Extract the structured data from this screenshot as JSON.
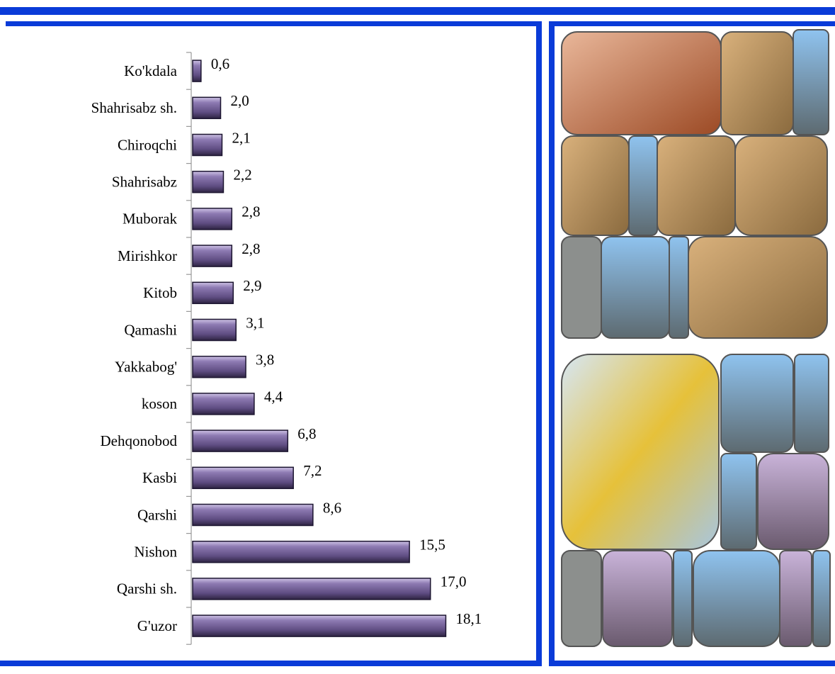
{
  "chart_data": {
    "type": "bar",
    "orientation": "horizontal",
    "categories": [
      "Ko'kdala",
      "Shahrisabz sh.",
      "Chiroqchi",
      "Shahrisabz",
      "Muborak",
      "Mirishkor",
      "Kitob",
      "Qamashi",
      "Yakkabog'",
      "koson",
      "Dehqonobod",
      "Kasbi",
      "Qarshi",
      "Nishon",
      "Qarshi sh.",
      "G'uzor"
    ],
    "values": [
      0.6,
      2.0,
      2.1,
      2.2,
      2.8,
      2.8,
      2.9,
      3.1,
      3.8,
      4.4,
      6.8,
      7.2,
      8.6,
      15.5,
      17.0,
      18.1
    ],
    "value_labels": [
      "0,6",
      "2,0",
      "2,1",
      "2,2",
      "2,8",
      "2,8",
      "2,9",
      "3,1",
      "3,8",
      "4,4",
      "6,8",
      "7,2",
      "8,6",
      "15,5",
      "17,0",
      "18,1"
    ],
    "color": "#5f4d82"
  }
}
